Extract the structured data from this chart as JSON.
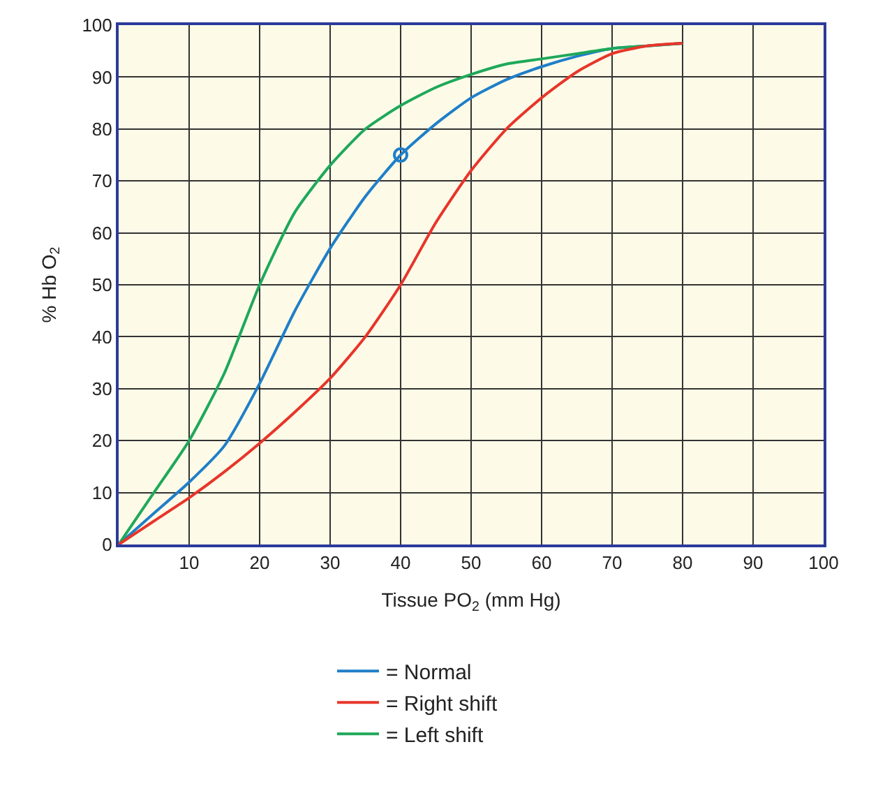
{
  "chart_data": {
    "type": "line",
    "xlabel": "Tissue PO$_{2}$ (mm Hg)",
    "ylabel": "% Hb O$_{2}$",
    "xlim": [
      0,
      100
    ],
    "xticks": [
      10,
      20,
      30,
      40,
      50,
      60,
      70,
      80,
      90,
      100
    ],
    "ylim": [
      0,
      100
    ],
    "yticks": [
      0,
      10,
      20,
      30,
      40,
      50,
      60,
      70,
      80,
      90,
      100
    ],
    "grid": true,
    "legend": "bottom",
    "marker": "none",
    "line_style": "solid",
    "series": [
      {
        "name": "= Normal",
        "color": "#1f7fc8",
        "x": [
          0,
          5,
          10,
          15,
          20,
          25,
          30,
          35,
          40,
          45,
          50,
          55,
          60,
          65,
          70,
          75,
          80
        ],
        "values": [
          0,
          6,
          12,
          19,
          31,
          45,
          57,
          67,
          75,
          81,
          86,
          89.5,
          92,
          94,
          95.5,
          96,
          96.5
        ]
      },
      {
        "name": "= Right shift",
        "color": "#e8352a",
        "x": [
          0,
          5,
          10,
          15,
          20,
          25,
          30,
          35,
          40,
          45,
          50,
          55,
          60,
          65,
          70,
          75,
          80
        ],
        "values": [
          0,
          4.5,
          9,
          14,
          19.5,
          25.5,
          32,
          40,
          50,
          62,
          72,
          80,
          86,
          91,
          94.5,
          96,
          96.5
        ]
      },
      {
        "name": "= Left shift",
        "color": "#1fa85a",
        "x": [
          0,
          5,
          10,
          15,
          20,
          25,
          30,
          35,
          40,
          45,
          50,
          55,
          60,
          65,
          70,
          75,
          80
        ],
        "values": [
          0,
          10,
          20,
          33,
          50,
          64,
          73,
          80,
          84.5,
          88,
          90.5,
          92.5,
          93.5,
          94.5,
          95.5,
          96,
          96.5
        ]
      },
      {
        "type": "scatter",
        "color": "#1f7fc8",
        "marker": "circle",
        "x": [
          40
        ],
        "values": [
          75
        ]
      }
    ]
  }
}
